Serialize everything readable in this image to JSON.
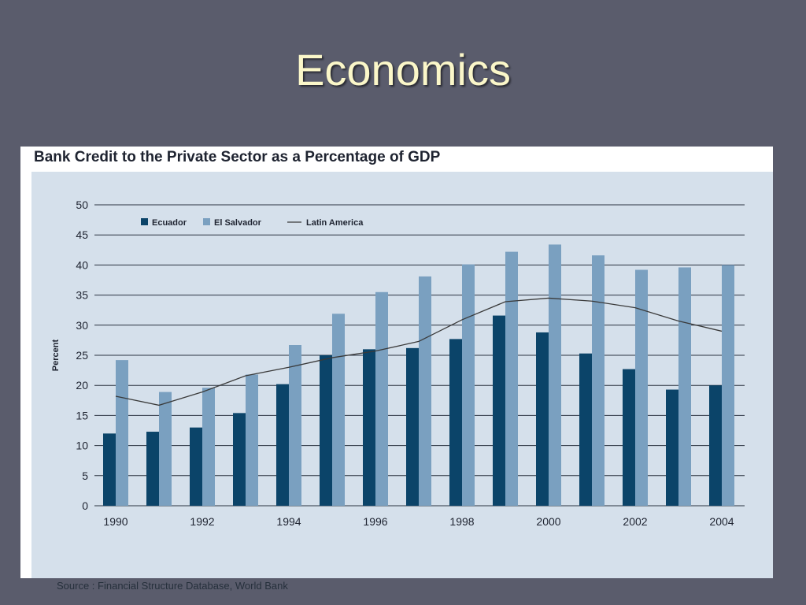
{
  "slide": {
    "title": "Economics"
  },
  "chart_data": {
    "type": "bar",
    "title": "Bank Credit to the Private Sector as a Percentage of GDP",
    "xlabel": "",
    "ylabel": "Percent",
    "ylim": [
      0,
      50
    ],
    "yticks": [
      0,
      5,
      10,
      15,
      20,
      25,
      30,
      35,
      40,
      45,
      50
    ],
    "categories": [
      "1990",
      "1991",
      "1992",
      "1993",
      "1994",
      "1995",
      "1996",
      "1997",
      "1998",
      "1999",
      "2000",
      "2001",
      "2002",
      "2003",
      "2004"
    ],
    "xtick_labels": [
      "1990",
      "",
      "1992",
      "",
      "1994",
      "",
      "1996",
      "",
      "1998",
      "",
      "2000",
      "",
      "2002",
      "",
      "2004"
    ],
    "series": [
      {
        "name": "Ecuador",
        "type": "bar",
        "color": "#0b4469",
        "values": [
          12.0,
          12.3,
          13.0,
          15.4,
          20.2,
          25.0,
          26.0,
          26.2,
          27.7,
          31.6,
          28.8,
          25.3,
          22.7,
          19.3,
          20.0
        ]
      },
      {
        "name": "El Salvador",
        "type": "bar",
        "color": "#7aa0c0",
        "values": [
          24.2,
          18.9,
          19.6,
          21.8,
          26.7,
          31.9,
          35.5,
          38.1,
          40.1,
          42.2,
          43.4,
          41.6,
          39.2,
          39.6,
          40.0
        ]
      },
      {
        "name": "Latin America",
        "type": "line",
        "color": "#3a3a3a",
        "values": [
          18.2,
          16.7,
          18.9,
          21.6,
          23.0,
          24.6,
          25.7,
          27.3,
          30.9,
          33.9,
          34.5,
          34.0,
          32.9,
          30.7,
          29.0
        ]
      }
    ],
    "legend": "top-left",
    "grid": true,
    "source": "Source : Financial Structure Database, World Bank"
  }
}
